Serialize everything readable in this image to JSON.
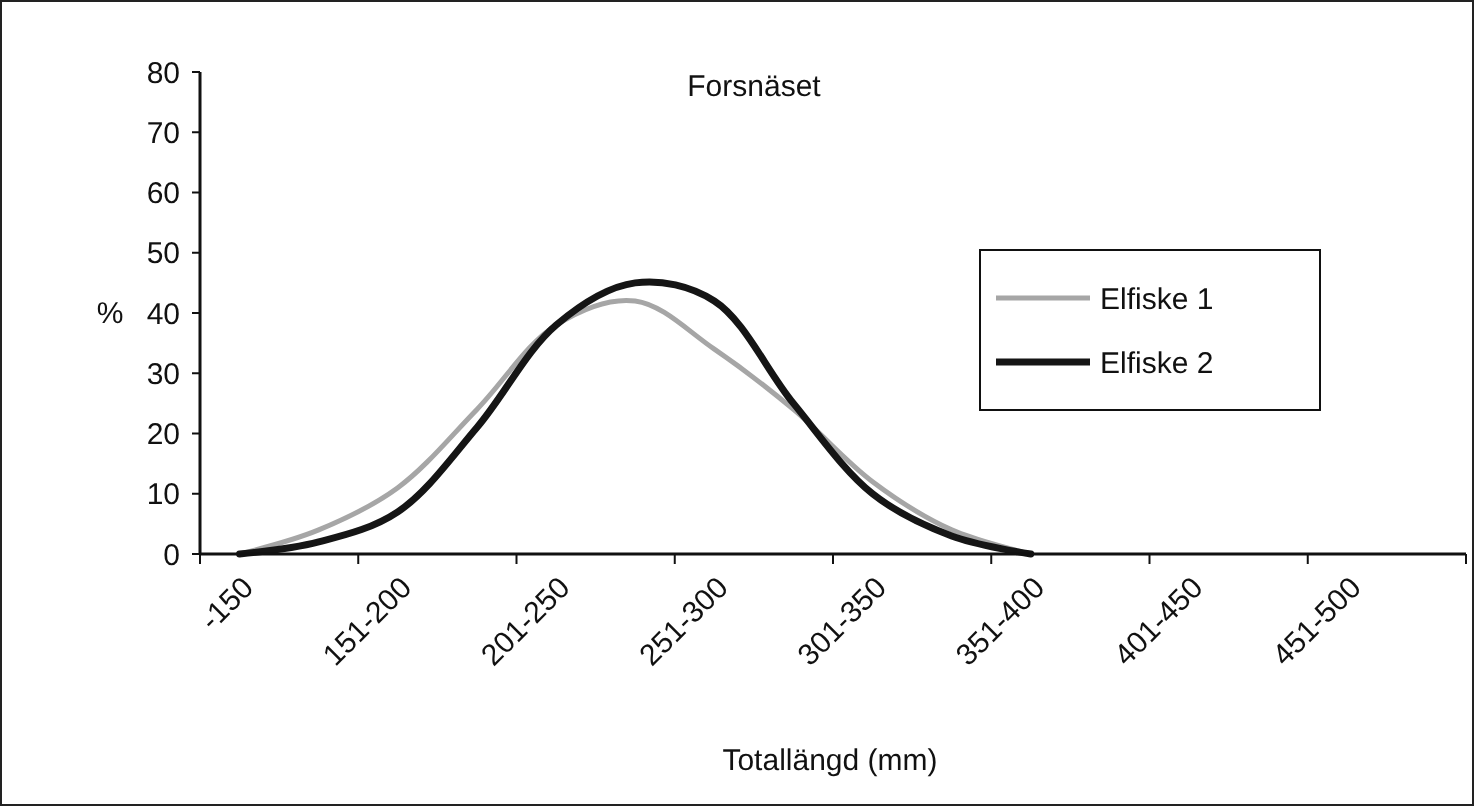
{
  "chart_data": {
    "type": "line",
    "title": "Forsnäset",
    "xlabel": "Totallängd (mm)",
    "ylabel": "%",
    "categories": [
      "-150",
      null,
      "151-200",
      null,
      "201-250",
      null,
      "251-300",
      null,
      "301-350",
      null,
      "351-400",
      null,
      "401-450",
      null,
      "451-500",
      null
    ],
    "series": [
      {
        "name": "Elfiske 1",
        "color": "#a6a6a6",
        "values": [
          0,
          4,
          11,
          24,
          38,
          42,
          34,
          24,
          12,
          4,
          0,
          null,
          null,
          null,
          null,
          null
        ]
      },
      {
        "name": "Elfiske 2",
        "color": "#151515",
        "values": [
          0,
          2,
          7,
          21,
          38,
          45,
          42,
          25,
          10,
          3,
          0,
          null,
          null,
          null,
          null,
          null
        ]
      }
    ],
    "ylim": [
      0,
      80
    ],
    "yticks": [
      0,
      10,
      20,
      30,
      40,
      50,
      60,
      70,
      80
    ],
    "grid": false,
    "legend": "right",
    "marker": "none",
    "line_style": "solid"
  }
}
